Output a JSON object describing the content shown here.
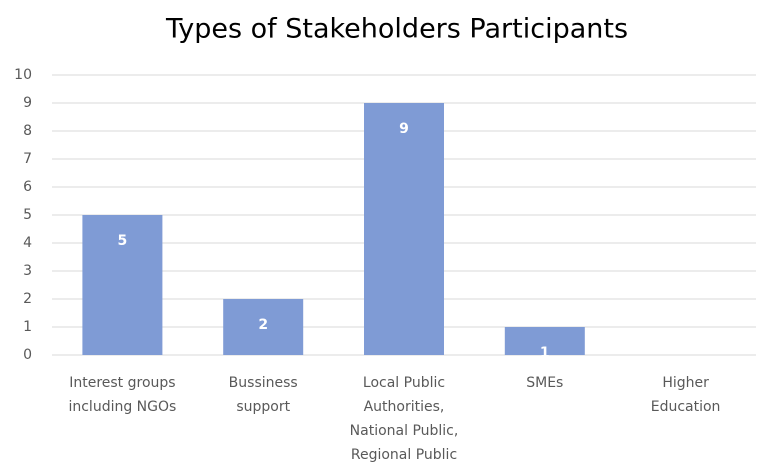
{
  "chart_data": {
    "type": "bar",
    "title": "Types of Stakeholders Participants",
    "categories": [
      "Interest groups including NGOs",
      "Bussiness support",
      "Local Public Authorities, National Public, Regional Public",
      "SMEs",
      "Higher Education"
    ],
    "values": [
      5,
      2,
      9,
      1,
      null
    ],
    "color": "#7f9bd5",
    "ylim": [
      0,
      10
    ],
    "yticks": [
      0,
      1,
      2,
      3,
      4,
      5,
      6,
      7,
      8,
      9,
      10
    ],
    "grid": true
  }
}
